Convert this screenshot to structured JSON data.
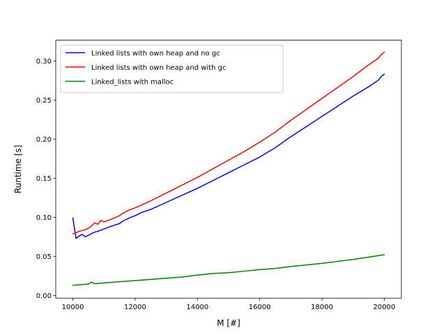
{
  "chart_data": {
    "type": "line",
    "xlabel": "M [#]",
    "ylabel": "Runtime [s]",
    "xlim": [
      9450,
      20550
    ],
    "ylim": [
      -0.0035,
      0.3265
    ],
    "x_ticks": [
      10000,
      12000,
      14000,
      16000,
      18000,
      20000
    ],
    "y_ticks": [
      0.0,
      0.05,
      0.1,
      0.15,
      0.2,
      0.25,
      0.3
    ],
    "x_tick_labels": [
      "10000",
      "12000",
      "14000",
      "16000",
      "18000",
      "20000"
    ],
    "y_tick_labels": [
      "0.00",
      "0.05",
      "0.10",
      "0.15",
      "0.20",
      "0.25",
      "0.30"
    ],
    "grid": false,
    "legend_position": "top-left",
    "series": [
      {
        "name": "Linked lists with own heap and no gc",
        "color": "#0000ff",
        "points": [
          [
            10000,
            0.099
          ],
          [
            10100,
            0.073
          ],
          [
            10200,
            0.076
          ],
          [
            10300,
            0.078
          ],
          [
            10400,
            0.075
          ],
          [
            10500,
            0.077
          ],
          [
            10600,
            0.079
          ],
          [
            10700,
            0.081
          ],
          [
            10800,
            0.082
          ],
          [
            11000,
            0.085
          ],
          [
            11200,
            0.088
          ],
          [
            11500,
            0.092
          ],
          [
            11600,
            0.095
          ],
          [
            11800,
            0.099
          ],
          [
            12000,
            0.102
          ],
          [
            12200,
            0.106
          ],
          [
            12500,
            0.11
          ],
          [
            13000,
            0.119
          ],
          [
            13500,
            0.128
          ],
          [
            14000,
            0.137
          ],
          [
            14500,
            0.147
          ],
          [
            15000,
            0.157
          ],
          [
            15500,
            0.167
          ],
          [
            16000,
            0.177
          ],
          [
            16500,
            0.189
          ],
          [
            17000,
            0.203
          ],
          [
            17500,
            0.216
          ],
          [
            18000,
            0.229
          ],
          [
            18500,
            0.242
          ],
          [
            19000,
            0.255
          ],
          [
            19500,
            0.267
          ],
          [
            19800,
            0.275
          ],
          [
            19900,
            0.28
          ],
          [
            20000,
            0.283
          ]
        ]
      },
      {
        "name": "Linked lists with own heap and with gc",
        "color": "#ff0000",
        "points": [
          [
            10000,
            0.079
          ],
          [
            10100,
            0.08
          ],
          [
            10200,
            0.082
          ],
          [
            10300,
            0.083
          ],
          [
            10400,
            0.084
          ],
          [
            10500,
            0.086
          ],
          [
            10600,
            0.089
          ],
          [
            10700,
            0.093
          ],
          [
            10800,
            0.091
          ],
          [
            10900,
            0.096
          ],
          [
            11000,
            0.094
          ],
          [
            11200,
            0.097
          ],
          [
            11500,
            0.102
          ],
          [
            11600,
            0.105
          ],
          [
            11800,
            0.109
          ],
          [
            12000,
            0.112
          ],
          [
            12500,
            0.121
          ],
          [
            13000,
            0.131
          ],
          [
            13500,
            0.141
          ],
          [
            14000,
            0.151
          ],
          [
            14500,
            0.162
          ],
          [
            15000,
            0.173
          ],
          [
            15500,
            0.184
          ],
          [
            16000,
            0.196
          ],
          [
            16500,
            0.209
          ],
          [
            17000,
            0.224
          ],
          [
            17500,
            0.238
          ],
          [
            18000,
            0.252
          ],
          [
            18500,
            0.266
          ],
          [
            19000,
            0.28
          ],
          [
            19500,
            0.295
          ],
          [
            19800,
            0.303
          ],
          [
            19900,
            0.308
          ],
          [
            20000,
            0.311
          ]
        ]
      },
      {
        "name": "Linked_lists with malloc",
        "color": "#008000",
        "points": [
          [
            10000,
            0.013
          ],
          [
            10500,
            0.0145
          ],
          [
            10600,
            0.017
          ],
          [
            10700,
            0.015
          ],
          [
            11000,
            0.016
          ],
          [
            11500,
            0.0175
          ],
          [
            12000,
            0.019
          ],
          [
            12500,
            0.0205
          ],
          [
            13000,
            0.022
          ],
          [
            13500,
            0.0235
          ],
          [
            14000,
            0.026
          ],
          [
            14500,
            0.028
          ],
          [
            15000,
            0.029
          ],
          [
            15500,
            0.031
          ],
          [
            16000,
            0.033
          ],
          [
            16500,
            0.0345
          ],
          [
            17000,
            0.037
          ],
          [
            17500,
            0.039
          ],
          [
            18000,
            0.041
          ],
          [
            18500,
            0.0435
          ],
          [
            19000,
            0.046
          ],
          [
            19500,
            0.049
          ],
          [
            20000,
            0.052
          ]
        ]
      }
    ]
  }
}
